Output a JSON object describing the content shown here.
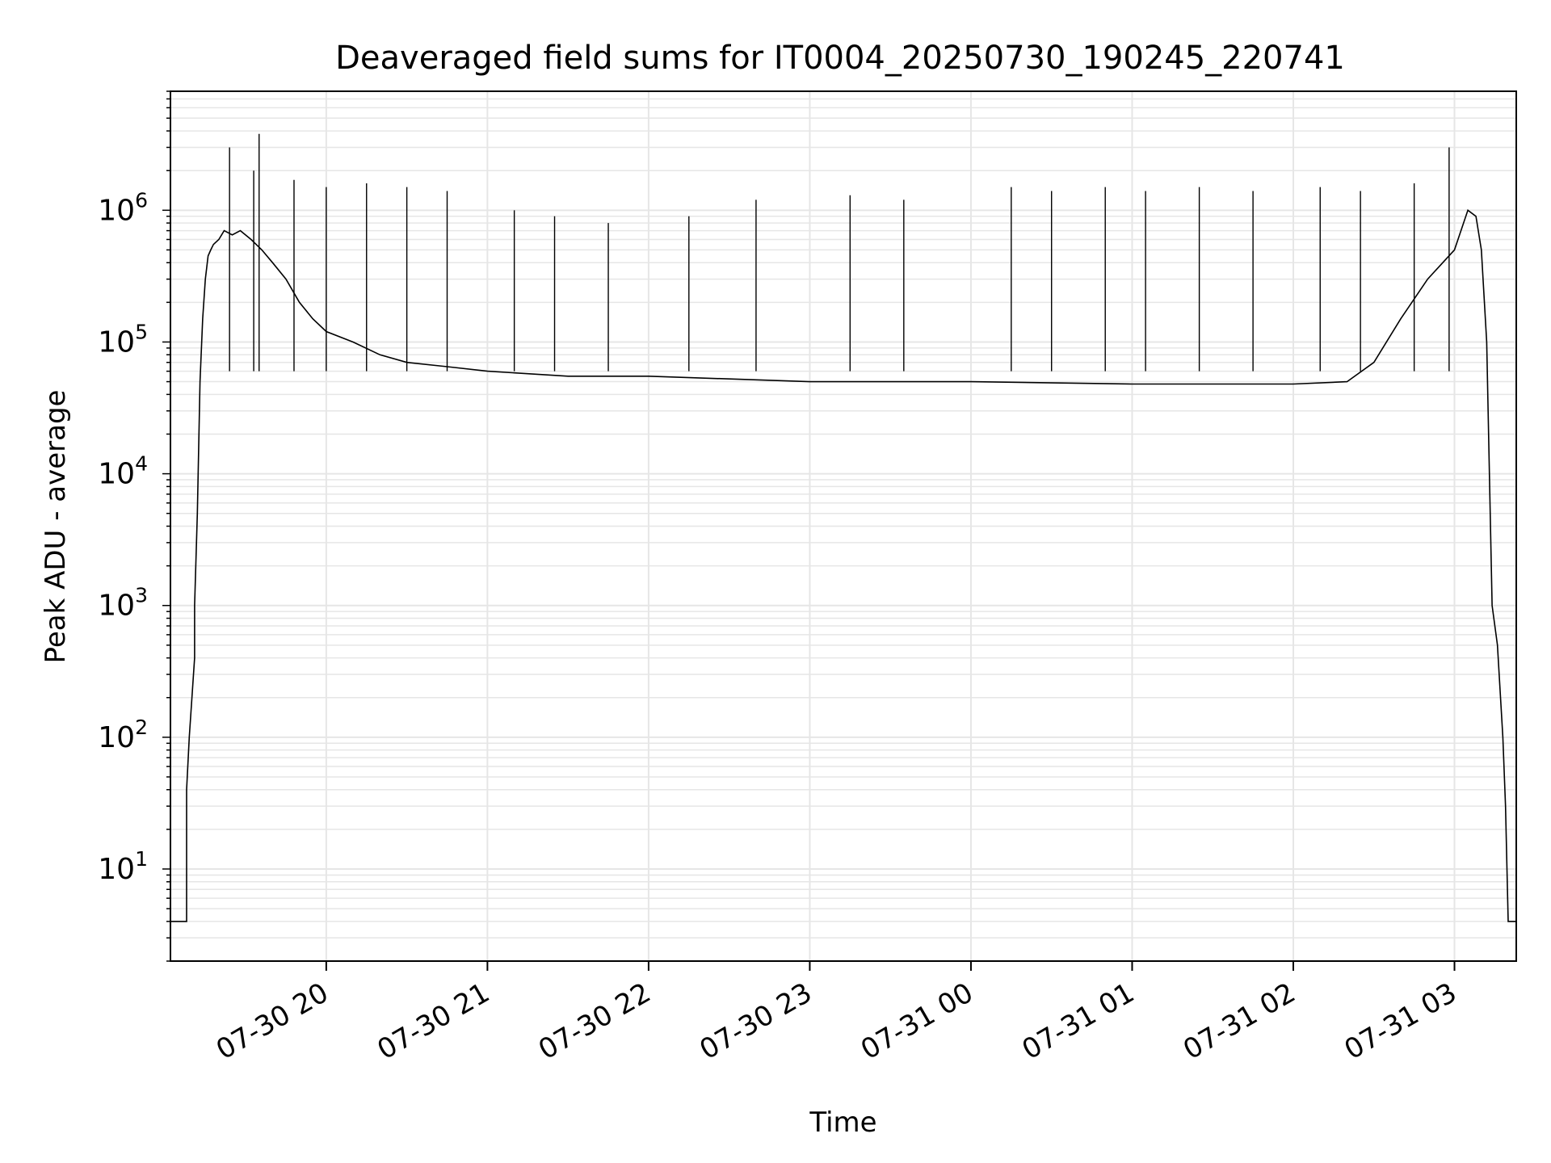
{
  "chart_data": {
    "type": "line",
    "title": "Deaveraged field sums for IT0004_20250730_190245_220741",
    "xlabel": "Time",
    "ylabel": "Peak ADU - average",
    "yscale": "log",
    "x_range": [
      "2025-07-30 19:02",
      "2025-07-31 03:23"
    ],
    "ylim": [
      2,
      8000000
    ],
    "grid": true,
    "line_color": "#000000",
    "x_ticks": [
      {
        "label": "07-30 20",
        "value": "2025-07-30 20:00"
      },
      {
        "label": "07-30 21",
        "value": "2025-07-30 21:00"
      },
      {
        "label": "07-30 22",
        "value": "2025-07-30 22:00"
      },
      {
        "label": "07-30 23",
        "value": "2025-07-30 23:00"
      },
      {
        "label": "07-31 00",
        "value": "2025-07-31 00:00"
      },
      {
        "label": "07-31 01",
        "value": "2025-07-31 01:00"
      },
      {
        "label": "07-31 02",
        "value": "2025-07-31 02:00"
      },
      {
        "label": "07-31 03",
        "value": "2025-07-31 03:00"
      }
    ],
    "y_ticks": [
      {
        "base": "10",
        "exp": "1",
        "value": 10
      },
      {
        "base": "10",
        "exp": "2",
        "value": 100
      },
      {
        "base": "10",
        "exp": "3",
        "value": 1000
      },
      {
        "base": "10",
        "exp": "4",
        "value": 10000
      },
      {
        "base": "10",
        "exp": "5",
        "value": 100000
      },
      {
        "base": "10",
        "exp": "6",
        "value": 1000000
      }
    ],
    "series": [
      {
        "x": [
          "2025-07-30 19:02",
          "2025-07-30 19:08",
          "2025-07-30 19:08",
          "2025-07-30 19:09",
          "2025-07-30 19:10",
          "2025-07-30 19:11",
          "2025-07-30 19:11",
          "2025-07-30 19:12",
          "2025-07-30 19:13",
          "2025-07-30 19:14",
          "2025-07-30 19:15",
          "2025-07-30 19:16",
          "2025-07-30 19:17",
          "2025-07-30 19:18",
          "2025-07-30 19:20",
          "2025-07-30 19:22",
          "2025-07-30 19:25",
          "2025-07-30 19:28",
          "2025-07-30 19:32",
          "2025-07-30 19:36",
          "2025-07-30 19:40",
          "2025-07-30 19:45",
          "2025-07-30 19:50",
          "2025-07-30 19:55",
          "2025-07-30 20:00",
          "2025-07-30 20:10",
          "2025-07-30 20:20",
          "2025-07-30 20:30",
          "2025-07-30 20:45",
          "2025-07-30 21:00",
          "2025-07-30 21:30",
          "2025-07-30 22:00",
          "2025-07-30 23:00",
          "2025-07-31 00:00",
          "2025-07-31 01:00",
          "2025-07-31 02:00",
          "2025-07-31 02:20",
          "2025-07-31 02:30",
          "2025-07-31 02:40",
          "2025-07-31 02:50",
          "2025-07-31 03:00",
          "2025-07-31 03:05",
          "2025-07-31 03:08",
          "2025-07-31 03:10",
          "2025-07-31 03:12",
          "2025-07-31 03:14",
          "2025-07-31 03:16",
          "2025-07-31 03:18",
          "2025-07-31 03:19",
          "2025-07-31 03:20",
          "2025-07-31 03:23"
        ],
        "values": [
          4,
          4,
          40,
          100,
          200,
          400,
          1000,
          5000,
          50000,
          150000,
          300000,
          450000,
          500000,
          550000,
          600000,
          700000,
          650000,
          700000,
          600000,
          500000,
          400000,
          300000,
          200000,
          150000,
          120000,
          100000,
          80000,
          70000,
          65000,
          60000,
          55000,
          55000,
          50000,
          50000,
          48000,
          48000,
          50000,
          70000,
          150000,
          300000,
          500000,
          1000000,
          900000,
          500000,
          100000,
          1000,
          500,
          100,
          30,
          4,
          4
        ]
      }
    ],
    "spikes": [
      {
        "x": "2025-07-30 19:24",
        "y": 3000000
      },
      {
        "x": "2025-07-30 19:35",
        "y": 3800000
      },
      {
        "x": "2025-07-30 19:33",
        "y": 2000000
      },
      {
        "x": "2025-07-30 19:48",
        "y": 1700000
      },
      {
        "x": "2025-07-30 20:00",
        "y": 1500000
      },
      {
        "x": "2025-07-30 20:15",
        "y": 1600000
      },
      {
        "x": "2025-07-30 20:30",
        "y": 1500000
      },
      {
        "x": "2025-07-30 20:45",
        "y": 1400000
      },
      {
        "x": "2025-07-30 21:10",
        "y": 1000000
      },
      {
        "x": "2025-07-30 21:25",
        "y": 900000
      },
      {
        "x": "2025-07-30 21:45",
        "y": 800000
      },
      {
        "x": "2025-07-30 22:15",
        "y": 900000
      },
      {
        "x": "2025-07-30 22:40",
        "y": 1200000
      },
      {
        "x": "2025-07-30 23:15",
        "y": 1300000
      },
      {
        "x": "2025-07-30 23:35",
        "y": 1200000
      },
      {
        "x": "2025-07-31 00:15",
        "y": 1500000
      },
      {
        "x": "2025-07-31 00:30",
        "y": 1400000
      },
      {
        "x": "2025-07-31 00:50",
        "y": 1500000
      },
      {
        "x": "2025-07-31 01:05",
        "y": 1400000
      },
      {
        "x": "2025-07-31 01:25",
        "y": 1500000
      },
      {
        "x": "2025-07-31 01:45",
        "y": 1400000
      },
      {
        "x": "2025-07-31 02:10",
        "y": 1500000
      },
      {
        "x": "2025-07-31 02:25",
        "y": 1400000
      },
      {
        "x": "2025-07-31 02:45",
        "y": 1600000
      },
      {
        "x": "2025-07-31 02:58",
        "y": 3000000
      }
    ]
  }
}
